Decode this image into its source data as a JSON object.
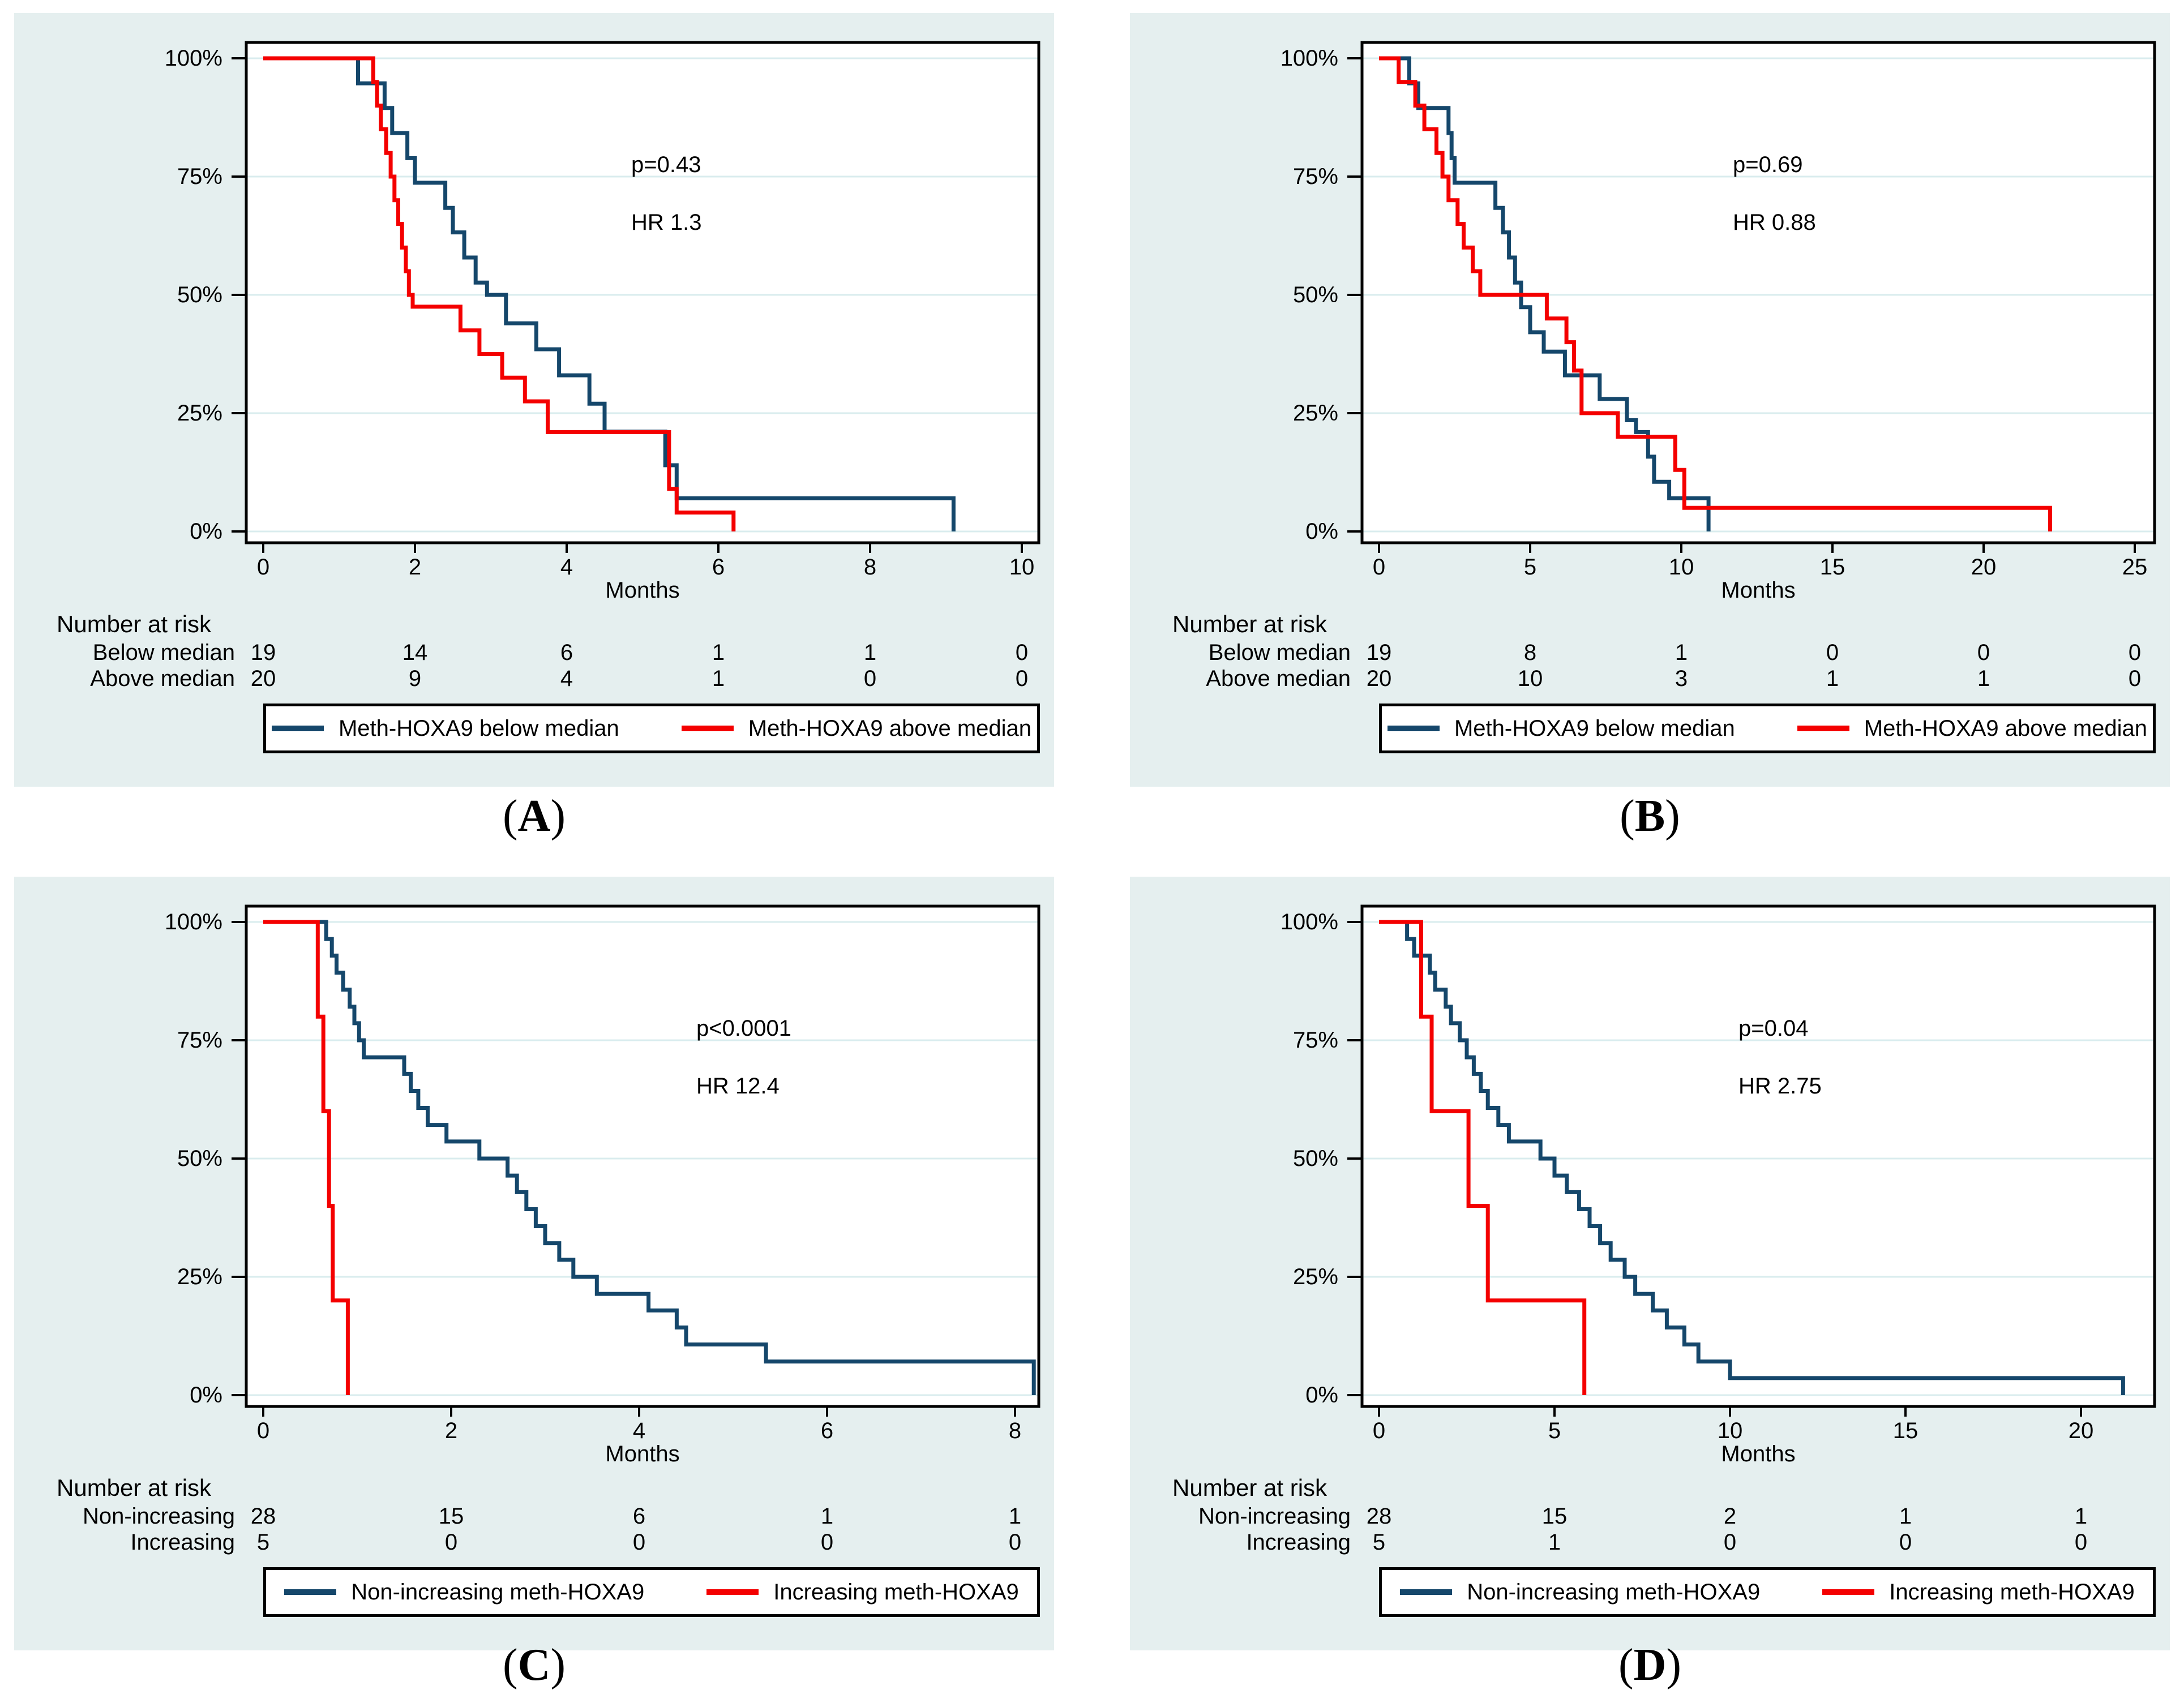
{
  "figure": {
    "background_color": "#e5efef",
    "plot_background": "#ffffff",
    "grid_color": "#d9ecee",
    "navy": "#15476b",
    "red": "#f40000",
    "y_tick_labels": [
      "100%",
      "75%",
      "50%",
      "25%",
      "0%"
    ]
  },
  "chart_data": [
    {
      "type": "km_step_line",
      "panel_letter_prefix": "(",
      "panel_letter": "A",
      "panel_letter_suffix": ")",
      "p_value_text": "p=0.43",
      "hr_text": "HR 1.3",
      "xlabel": "Months",
      "x_ticks": [
        0,
        2,
        4,
        6,
        8,
        10
      ],
      "ylim": [
        0,
        100
      ],
      "y_ticks_percent": [
        100,
        75,
        50,
        25,
        0
      ],
      "series": [
        {
          "name": "Meth-HOXA9 below median",
          "color": "#15476b",
          "points": [
            [
              1.25,
              94.7
            ],
            [
              1.6,
              89.5
            ],
            [
              1.7,
              84.2
            ],
            [
              1.9,
              78.9
            ],
            [
              2.0,
              73.7
            ],
            [
              2.4,
              68.4
            ],
            [
              2.5,
              63.2
            ],
            [
              2.65,
              57.9
            ],
            [
              2.8,
              52.6
            ],
            [
              2.95,
              50
            ],
            [
              3.2,
              44
            ],
            [
              3.6,
              38.5
            ],
            [
              3.9,
              33
            ],
            [
              4.3,
              27
            ],
            [
              4.5,
              21.1
            ],
            [
              5.3,
              14
            ],
            [
              5.45,
              7
            ],
            [
              9.1,
              0
            ]
          ]
        },
        {
          "name": "Meth-HOXA9 above median",
          "color": "#f40000",
          "points": [
            [
              1.45,
              95
            ],
            [
              1.5,
              90
            ],
            [
              1.55,
              85
            ],
            [
              1.62,
              80
            ],
            [
              1.68,
              75
            ],
            [
              1.73,
              70
            ],
            [
              1.78,
              65
            ],
            [
              1.83,
              60
            ],
            [
              1.88,
              55
            ],
            [
              1.92,
              50
            ],
            [
              1.97,
              47.5
            ],
            [
              2.6,
              42.5
            ],
            [
              2.85,
              37.5
            ],
            [
              3.15,
              32.5
            ],
            [
              3.45,
              27.5
            ],
            [
              3.75,
              21
            ],
            [
              5.35,
              9
            ],
            [
              5.45,
              4
            ],
            [
              6.2,
              0
            ]
          ]
        }
      ],
      "number_at_risk": {
        "title": "Number at risk",
        "rows": [
          {
            "label": "Below median",
            "values": [
              19,
              14,
              6,
              1,
              1,
              0
            ]
          },
          {
            "label": "Above median",
            "values": [
              20,
              9,
              4,
              1,
              0,
              0
            ]
          }
        ]
      }
    },
    {
      "type": "km_step_line",
      "panel_letter_prefix": "(",
      "panel_letter": "B",
      "panel_letter_suffix": ")",
      "p_value_text": "p=0.69",
      "hr_text": "HR 0.88",
      "xlabel": "Months",
      "x_ticks": [
        0,
        5,
        10,
        15,
        20,
        25
      ],
      "ylim": [
        0,
        100
      ],
      "y_ticks_percent": [
        100,
        75,
        50,
        25,
        0
      ],
      "series": [
        {
          "name": "Meth-HOXA9 below median",
          "color": "#15476b",
          "points": [
            [
              1.0,
              94.7
            ],
            [
              1.3,
              89.5
            ],
            [
              2.3,
              84.2
            ],
            [
              2.4,
              78.9
            ],
            [
              2.5,
              73.7
            ],
            [
              3.85,
              68.4
            ],
            [
              4.1,
              63.2
            ],
            [
              4.3,
              57.9
            ],
            [
              4.5,
              52.6
            ],
            [
              4.7,
              47.4
            ],
            [
              5.0,
              42.1
            ],
            [
              5.45,
              38
            ],
            [
              6.15,
              33
            ],
            [
              7.3,
              28
            ],
            [
              8.2,
              23.5
            ],
            [
              8.5,
              21
            ],
            [
              8.9,
              15.8
            ],
            [
              9.1,
              10.5
            ],
            [
              9.6,
              7
            ],
            [
              10.9,
              0
            ]
          ]
        },
        {
          "name": "Meth-HOXA9 above median",
          "color": "#f40000",
          "points": [
            [
              0.65,
              95
            ],
            [
              1.2,
              90
            ],
            [
              1.5,
              85
            ],
            [
              1.9,
              80
            ],
            [
              2.1,
              75
            ],
            [
              2.3,
              70
            ],
            [
              2.6,
              65
            ],
            [
              2.8,
              60
            ],
            [
              3.1,
              55
            ],
            [
              3.35,
              50
            ],
            [
              5.55,
              45
            ],
            [
              6.2,
              40
            ],
            [
              6.45,
              34
            ],
            [
              6.7,
              25
            ],
            [
              7.9,
              20
            ],
            [
              9.8,
              13
            ],
            [
              10.1,
              5
            ],
            [
              22.2,
              0
            ]
          ]
        }
      ],
      "number_at_risk": {
        "title": "Number at risk",
        "rows": [
          {
            "label": "Below median",
            "values": [
              19,
              8,
              1,
              0,
              0,
              0
            ]
          },
          {
            "label": "Above median",
            "values": [
              20,
              10,
              3,
              1,
              1,
              0
            ]
          }
        ]
      }
    },
    {
      "type": "km_step_line",
      "panel_letter_prefix": "(",
      "panel_letter": "C",
      "panel_letter_suffix": ")",
      "p_value_text": "p<0.0001",
      "hr_text": "HR 12.4",
      "xlabel": "Months",
      "x_ticks": [
        0,
        2,
        4,
        6,
        8
      ],
      "ylim": [
        0,
        100
      ],
      "y_ticks_percent": [
        100,
        75,
        50,
        25,
        0
      ],
      "series": [
        {
          "name": "Non-increasing meth-HOXA9",
          "color": "#15476b",
          "points": [
            [
              0.67,
              96.4
            ],
            [
              0.73,
              92.9
            ],
            [
              0.78,
              89.3
            ],
            [
              0.85,
              85.7
            ],
            [
              0.92,
              82.1
            ],
            [
              0.97,
              78.6
            ],
            [
              1.02,
              75
            ],
            [
              1.07,
              71.4
            ],
            [
              1.5,
              67.9
            ],
            [
              1.57,
              64.3
            ],
            [
              1.65,
              60.7
            ],
            [
              1.75,
              57.1
            ],
            [
              1.95,
              53.6
            ],
            [
              2.3,
              50
            ],
            [
              2.6,
              46.4
            ],
            [
              2.7,
              42.9
            ],
            [
              2.8,
              39.3
            ],
            [
              2.9,
              35.7
            ],
            [
              3.0,
              32.1
            ],
            [
              3.15,
              28.6
            ],
            [
              3.3,
              25
            ],
            [
              3.55,
              21.4
            ],
            [
              4.1,
              17.9
            ],
            [
              4.4,
              14.3
            ],
            [
              4.5,
              10.7
            ],
            [
              5.35,
              7.1
            ],
            [
              8.2,
              0
            ]
          ]
        },
        {
          "name": "Increasing meth-HOXA9",
          "color": "#f40000",
          "points": [
            [
              0.58,
              80
            ],
            [
              0.64,
              60
            ],
            [
              0.7,
              40
            ],
            [
              0.74,
              20
            ],
            [
              0.9,
              0
            ]
          ]
        }
      ],
      "number_at_risk": {
        "title": "Number at risk",
        "rows": [
          {
            "label": "Non-increasing",
            "values": [
              28,
              15,
              6,
              1,
              1
            ]
          },
          {
            "label": "Increasing",
            "values": [
              5,
              0,
              0,
              0,
              0
            ]
          }
        ]
      }
    },
    {
      "type": "km_step_line",
      "panel_letter_prefix": "(",
      "panel_letter": "D",
      "panel_letter_suffix": ")",
      "p_value_text": "p=0.04",
      "hr_text": "HR 2.75",
      "xlabel": "Months",
      "x_ticks": [
        0,
        5,
        10,
        15,
        20
      ],
      "ylim": [
        0,
        100
      ],
      "y_ticks_percent": [
        100,
        75,
        50,
        25,
        0
      ],
      "series": [
        {
          "name": "Non-increasing meth-HOXA9",
          "color": "#15476b",
          "points": [
            [
              0.8,
              96.4
            ],
            [
              1.0,
              92.9
            ],
            [
              1.45,
              89.3
            ],
            [
              1.6,
              85.7
            ],
            [
              1.9,
              82.1
            ],
            [
              2.05,
              78.6
            ],
            [
              2.3,
              75
            ],
            [
              2.5,
              71.4
            ],
            [
              2.7,
              67.9
            ],
            [
              2.9,
              64.3
            ],
            [
              3.1,
              60.7
            ],
            [
              3.4,
              57.1
            ],
            [
              3.7,
              53.6
            ],
            [
              4.6,
              50
            ],
            [
              5.0,
              46.4
            ],
            [
              5.35,
              42.9
            ],
            [
              5.7,
              39.3
            ],
            [
              6.0,
              35.7
            ],
            [
              6.3,
              32.1
            ],
            [
              6.6,
              28.6
            ],
            [
              7.0,
              25
            ],
            [
              7.3,
              21.4
            ],
            [
              7.8,
              17.9
            ],
            [
              8.2,
              14.3
            ],
            [
              8.7,
              10.7
            ],
            [
              9.1,
              7.1
            ],
            [
              10.0,
              3.6
            ],
            [
              21.2,
              0
            ]
          ]
        },
        {
          "name": "Increasing meth-HOXA9",
          "color": "#f40000",
          "points": [
            [
              1.2,
              80
            ],
            [
              1.5,
              60
            ],
            [
              2.55,
              40
            ],
            [
              3.1,
              20
            ],
            [
              5.85,
              0
            ]
          ]
        }
      ],
      "number_at_risk": {
        "title": "Number at risk",
        "rows": [
          {
            "label": "Non-increasing",
            "values": [
              28,
              15,
              2,
              1,
              1
            ]
          },
          {
            "label": "Increasing",
            "values": [
              5,
              1,
              0,
              0,
              0
            ]
          }
        ]
      }
    }
  ]
}
